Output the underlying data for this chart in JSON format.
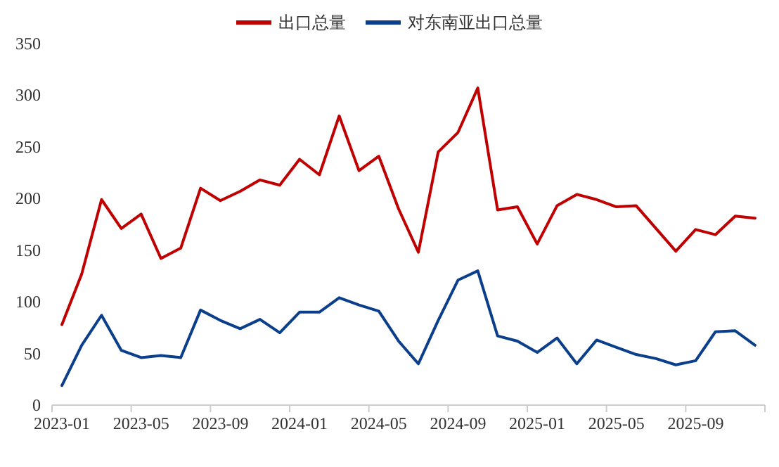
{
  "chart_data": {
    "type": "line",
    "categories": [
      "2023-01",
      null,
      null,
      null,
      "2023-05",
      null,
      null,
      null,
      "2023-09",
      null,
      null,
      null,
      "2024-01",
      null,
      null,
      null,
      "2024-05",
      null,
      null,
      null,
      "2024-09",
      null,
      null,
      null,
      "2025-01",
      null,
      null,
      null,
      "2025-05",
      null,
      null,
      null,
      "2025-09",
      null,
      null,
      null
    ],
    "series": [
      {
        "name": "出口总量",
        "color": "#c00000",
        "values": [
          78,
          127,
          199,
          171,
          185,
          142,
          152,
          210,
          198,
          207,
          218,
          213,
          238,
          223,
          280,
          227,
          241,
          190,
          148,
          245,
          264,
          307,
          189,
          192,
          156,
          193,
          204,
          199,
          192,
          193,
          171,
          149,
          170,
          165,
          183,
          181
        ]
      },
      {
        "name": "对东南亚出口总量",
        "color": "#0b3f8c",
        "values": [
          19,
          58,
          87,
          53,
          46,
          48,
          46,
          92,
          82,
          74,
          83,
          70,
          90,
          90,
          104,
          97,
          91,
          62,
          40,
          82,
          121,
          130,
          67,
          62,
          51,
          65,
          40,
          63,
          56,
          49,
          45,
          39,
          43,
          71,
          72,
          58
        ]
      }
    ],
    "ylim": [
      0,
      350
    ],
    "yticks": [
      0,
      50,
      100,
      150,
      200,
      250,
      300,
      350
    ],
    "grid": false,
    "legend": "top",
    "marker": "none",
    "line_style": "solid"
  }
}
